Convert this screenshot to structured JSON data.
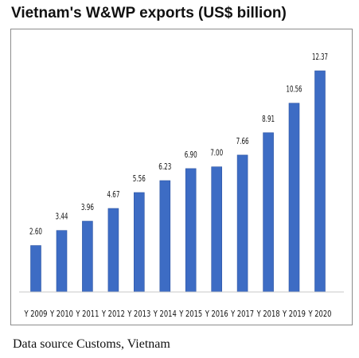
{
  "title": "Vietnam's W&WP exports (US$ billion)",
  "source": "Data source Customs, Vietnam",
  "chart_data": {
    "type": "bar",
    "title": "Vietnam's W&WP exports (US$ billion)",
    "xlabel": "",
    "ylabel": "",
    "categories": [
      "Y 2009",
      "Y 2010",
      "Y 2011",
      "Y 2012",
      "Y 2013",
      "Y 2014",
      "Y 2015",
      "Y 2016",
      "Y 2017",
      "Y 2018",
      "Y 2019",
      "Y 2020"
    ],
    "values": [
      2.6,
      3.44,
      3.96,
      4.67,
      5.56,
      6.23,
      6.9,
      7.0,
      7.66,
      8.91,
      10.56,
      12.37
    ],
    "value_labels": [
      "2.60",
      "3.44",
      "3.96",
      "4.67",
      "5.56",
      "6.23",
      "6.90",
      "7.00",
      "7.66",
      "8.91",
      "10.56",
      "12.37"
    ],
    "ylim": [
      0,
      12.37
    ],
    "grid": false,
    "legend": "none",
    "bar_color": "#3d6cc4"
  }
}
